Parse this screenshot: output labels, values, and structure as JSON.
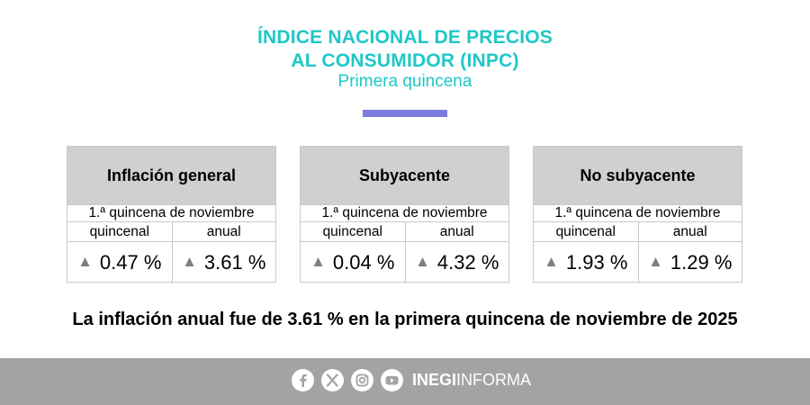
{
  "header": {
    "title_line1": "ÍNDICE NACIONAL DE PRECIOS",
    "title_line2": "AL CONSUMIDOR (INPC)",
    "subtitle": "Primera quincena",
    "accent_color": "#7b7be0",
    "title_color": "#1fc7c7"
  },
  "cards": [
    {
      "title": "Inflación general",
      "period": "1.ª quincena de noviembre",
      "col1_label": "quincenal",
      "col2_label": "anual",
      "col1_value": "0.47 %",
      "col2_value": "3.61 %",
      "col1_trend": "up",
      "col2_trend": "up"
    },
    {
      "title": "Subyacente",
      "period": "1.ª quincena de noviembre",
      "col1_label": "quincenal",
      "col2_label": "anual",
      "col1_value": "0.04 %",
      "col2_value": "4.32 %",
      "col1_trend": "up",
      "col2_trend": "up"
    },
    {
      "title": "No subyacente",
      "period": "1.ª quincena de noviembre",
      "col1_label": "quincenal",
      "col2_label": "anual",
      "col1_value": "1.93 %",
      "col2_value": "1.29 %",
      "col1_trend": "up",
      "col2_trend": "up"
    }
  ],
  "headline": "La inflación anual fue de 3.61 % en la primera quincena de noviembre de 2025",
  "footer": {
    "social_icons": [
      "facebook-icon",
      "x-icon",
      "instagram-icon",
      "youtube-icon"
    ],
    "brand_bold": "INEGI",
    "brand_light": "INFORMA",
    "background": "#a3a3a3"
  }
}
